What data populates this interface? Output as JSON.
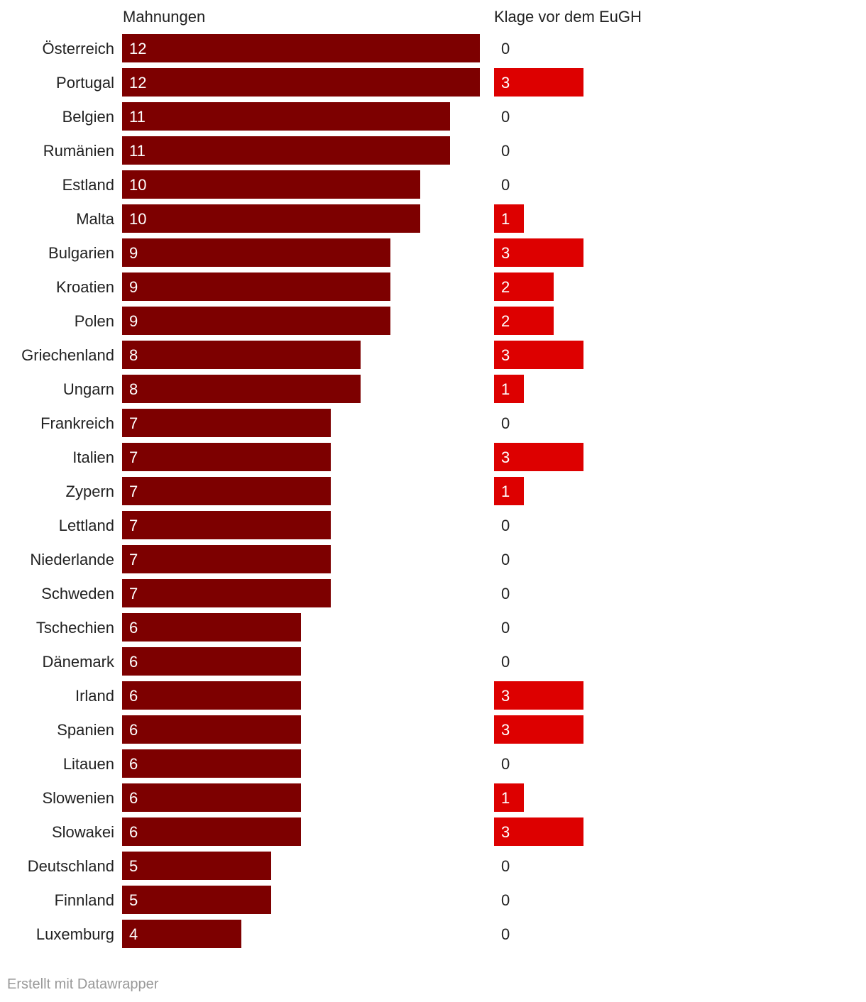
{
  "chart_data": {
    "type": "bar",
    "categories": [
      "Österreich",
      "Portugal",
      "Belgien",
      "Rumänien",
      "Estland",
      "Malta",
      "Bulgarien",
      "Kroatien",
      "Polen",
      "Griechenland",
      "Ungarn",
      "Frankreich",
      "Italien",
      "Zypern",
      "Lettland",
      "Niederlande",
      "Schweden",
      "Tschechien",
      "Dänemark",
      "Irland",
      "Spanien",
      "Litauen",
      "Slowenien",
      "Slowakei",
      "Deutschland",
      "Finnland",
      "Luxemburg"
    ],
    "series": [
      {
        "name": "Mahnungen",
        "color": "#7d0000",
        "values": [
          12,
          12,
          11,
          11,
          10,
          10,
          9,
          9,
          9,
          8,
          8,
          7,
          7,
          7,
          7,
          7,
          7,
          6,
          6,
          6,
          6,
          6,
          6,
          6,
          5,
          5,
          4
        ]
      },
      {
        "name": "Klage vor dem EuGH",
        "color": "#dd0000",
        "values": [
          0,
          3,
          0,
          0,
          0,
          1,
          3,
          2,
          2,
          3,
          1,
          0,
          3,
          1,
          0,
          0,
          0,
          0,
          0,
          3,
          3,
          0,
          1,
          3,
          0,
          0,
          0
        ]
      }
    ]
  },
  "footer": "Erstellt mit Datawrapper"
}
